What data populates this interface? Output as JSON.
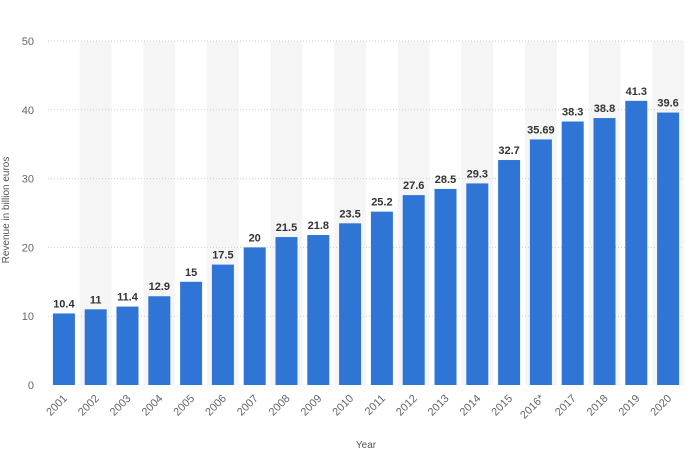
{
  "chart_data": {
    "type": "bar",
    "categories": [
      "2001",
      "2002",
      "2003",
      "2004",
      "2005",
      "2006",
      "2007",
      "2008",
      "2009",
      "2010",
      "2011",
      "2012",
      "2013",
      "2014",
      "2015",
      "2016*",
      "2017",
      "2018",
      "2019",
      "2020"
    ],
    "values": [
      10.4,
      11,
      11.4,
      12.9,
      15,
      17.5,
      20,
      21.5,
      21.8,
      23.5,
      25.2,
      27.6,
      28.5,
      29.3,
      32.7,
      35.69,
      38.3,
      38.8,
      41.3,
      39.6
    ],
    "data_labels": [
      "10.4",
      "11",
      "11.4",
      "12.9",
      "15",
      "17.5",
      "20",
      "21.5",
      "21.8",
      "23.5",
      "25.2",
      "27.6",
      "28.5",
      "29.3",
      "32.7",
      "35.69",
      "38.3",
      "38.8",
      "41.3",
      "39.6"
    ],
    "title": "",
    "xlabel": "Year",
    "ylabel": "Revenue in billion euros",
    "ylim": [
      0,
      50
    ],
    "yticks": [
      0,
      10,
      20,
      30,
      40,
      50
    ],
    "grid": true,
    "bar_color": "#2e75d6",
    "band_color": "#f5f5f5"
  }
}
